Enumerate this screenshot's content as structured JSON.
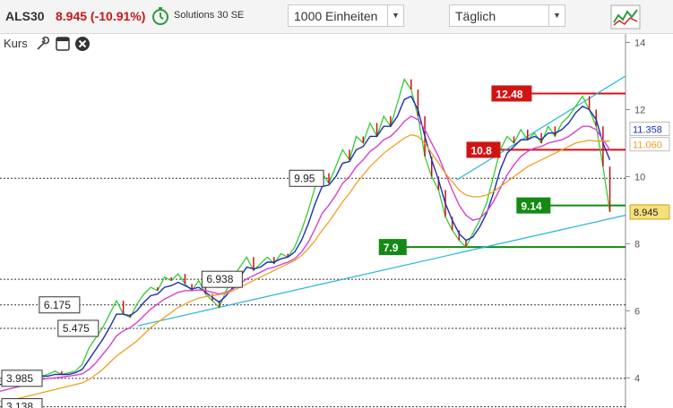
{
  "header": {
    "ticker": "ALS30",
    "price": "8.945 (-10.91%)",
    "trading_label": "Solutions 30 SE",
    "units_select": "1000 Einheiten",
    "interval_select": "Täglich"
  },
  "toolbar": {
    "kurs_label": "Kurs"
  },
  "colors": {
    "price_line": "#33cc33",
    "candle_down": "#cc1111",
    "ma_blue": "#1f2fb0",
    "ma_magenta": "#d93fcf",
    "ma_orange": "#f0a020",
    "trend_cyan": "#23b4e0",
    "level_red": "#d01414",
    "level_green": "#138a13"
  },
  "chart_data": {
    "type": "line",
    "yaxis": {
      "range": [
        3.1,
        14.2
      ],
      "ticks": [
        "14",
        "12",
        "10",
        "8",
        "6",
        "4"
      ]
    },
    "last_price": {
      "value": 8.945,
      "label": "8.945"
    },
    "ma_labels": [
      {
        "label": "11.358",
        "value": 11.36,
        "color": "#1f2fb0"
      },
      {
        "label": "11.060",
        "value": 11.06,
        "color": "#f0a020"
      }
    ],
    "levels": [
      {
        "value": 12.48,
        "label": "12.48",
        "style": "red",
        "line": "solid",
        "x_start": 0.8
      },
      {
        "value": 10.8,
        "label": "10.8",
        "style": "red",
        "line": "solid",
        "x_start": 0.76
      },
      {
        "value": 9.95,
        "label": "9.95",
        "style": "box",
        "line": "dotted",
        "x_start": 0.0
      },
      {
        "value": 9.14,
        "label": "9.14",
        "style": "green",
        "line": "solid",
        "x_start": 0.84
      },
      {
        "value": 7.9,
        "label": "7.9",
        "style": "green",
        "line": "solid",
        "x_start": 0.62
      },
      {
        "value": 6.938,
        "label": "6.938",
        "style": "box",
        "line": "dotted",
        "x_start": 0.0
      },
      {
        "value": 6.175,
        "label": "6.175",
        "style": "box",
        "line": "dotted",
        "x_start": 0.0
      },
      {
        "value": 5.475,
        "label": "5.475",
        "style": "box",
        "line": "dotted",
        "x_start": 0.0
      },
      {
        "value": 3.985,
        "label": "3.985",
        "style": "box",
        "line": "dotted",
        "x_start": 0.0
      },
      {
        "value": 3.138,
        "label": "3.138",
        "style": "box",
        "line": "dotted",
        "x_start": 0.0
      }
    ],
    "trendlines": [
      {
        "from": [
          0.22,
          5.55
        ],
        "to": [
          1.0,
          8.85
        ]
      },
      {
        "from": [
          0.73,
          9.9
        ],
        "to": [
          1.0,
          13.0
        ]
      }
    ],
    "series": [
      {
        "role": "price",
        "values": [
          3.9,
          3.95,
          4.0,
          4.05,
          4.2,
          4.1,
          4.05,
          4.1,
          4.2,
          4.1,
          4.15,
          4.2,
          4.4,
          4.9,
          5.2,
          5.5,
          5.9,
          6.3,
          5.9,
          5.8,
          6.2,
          6.5,
          6.7,
          6.6,
          7.0,
          6.9,
          7.1,
          6.8,
          6.6,
          6.9,
          6.5,
          6.3,
          6.1,
          6.6,
          7.0,
          7.3,
          7.6,
          7.2,
          7.4,
          7.6,
          7.4,
          7.7,
          7.6,
          7.9,
          8.4,
          9.0,
          9.7,
          10.1,
          9.8,
          10.3,
          10.8,
          10.5,
          11.2,
          11.0,
          11.6,
          11.2,
          11.8,
          11.5,
          12.2,
          12.9,
          12.6,
          11.8,
          10.6,
          10.0,
          9.6,
          8.8,
          8.4,
          8.1,
          7.9,
          8.3,
          8.7,
          9.2,
          10.0,
          10.8,
          11.2,
          11.0,
          11.4,
          11.1,
          11.3,
          11.0,
          11.5,
          11.2,
          11.6,
          11.8,
          12.1,
          12.4,
          12.0,
          11.5,
          10.3,
          8.945
        ]
      },
      {
        "role": "ma_short",
        "values": [
          3.8,
          3.85,
          3.9,
          3.95,
          4.05,
          4.05,
          4.05,
          4.05,
          4.1,
          4.1,
          4.1,
          4.15,
          4.25,
          4.55,
          4.85,
          5.15,
          5.5,
          5.9,
          5.9,
          5.85,
          6.0,
          6.25,
          6.45,
          6.5,
          6.7,
          6.75,
          6.85,
          6.75,
          6.65,
          6.7,
          6.55,
          6.4,
          6.25,
          6.45,
          6.7,
          7.0,
          7.3,
          7.25,
          7.3,
          7.45,
          7.45,
          7.55,
          7.6,
          7.75,
          8.1,
          8.6,
          9.2,
          9.7,
          9.75,
          10.0,
          10.4,
          10.45,
          10.8,
          10.9,
          11.2,
          11.2,
          11.5,
          11.5,
          11.8,
          12.3,
          12.4,
          12.0,
          11.2,
          10.5,
          9.9,
          9.2,
          8.7,
          8.3,
          8.1,
          8.2,
          8.5,
          8.9,
          9.5,
          10.2,
          10.7,
          10.9,
          11.1,
          11.1,
          11.2,
          11.1,
          11.3,
          11.3,
          11.4,
          11.6,
          11.9,
          12.1,
          12.0,
          11.7,
          11.0,
          10.5
        ]
      },
      {
        "role": "ma_mid",
        "values": [
          3.6,
          3.65,
          3.7,
          3.75,
          3.85,
          3.9,
          3.95,
          3.98,
          4.0,
          4.02,
          4.05,
          4.08,
          4.12,
          4.25,
          4.45,
          4.7,
          4.95,
          5.25,
          5.4,
          5.5,
          5.65,
          5.85,
          6.05,
          6.2,
          6.35,
          6.45,
          6.55,
          6.6,
          6.6,
          6.62,
          6.6,
          6.55,
          6.5,
          6.55,
          6.65,
          6.8,
          6.95,
          7.05,
          7.15,
          7.25,
          7.3,
          7.38,
          7.45,
          7.55,
          7.75,
          8.05,
          8.45,
          8.9,
          9.15,
          9.45,
          9.8,
          10.0,
          10.3,
          10.5,
          10.75,
          10.9,
          11.1,
          11.2,
          11.4,
          11.65,
          11.8,
          11.7,
          11.4,
          11.0,
          10.6,
          10.1,
          9.6,
          9.15,
          8.85,
          8.7,
          8.75,
          8.95,
          9.25,
          9.65,
          10.05,
          10.35,
          10.6,
          10.75,
          10.85,
          10.9,
          11.0,
          11.05,
          11.1,
          11.2,
          11.35,
          11.5,
          11.5,
          11.4,
          11.1,
          10.8
        ]
      },
      {
        "role": "ma_long",
        "values": [
          3.3,
          3.33,
          3.36,
          3.4,
          3.45,
          3.5,
          3.55,
          3.6,
          3.65,
          3.7,
          3.75,
          3.8,
          3.85,
          3.95,
          4.1,
          4.25,
          4.45,
          4.65,
          4.8,
          4.95,
          5.1,
          5.3,
          5.5,
          5.65,
          5.8,
          5.95,
          6.1,
          6.2,
          6.3,
          6.38,
          6.42,
          6.45,
          6.48,
          6.52,
          6.6,
          6.7,
          6.8,
          6.9,
          7.0,
          7.1,
          7.2,
          7.3,
          7.4,
          7.5,
          7.65,
          7.85,
          8.1,
          8.4,
          8.65,
          8.95,
          9.25,
          9.5,
          9.8,
          10.05,
          10.3,
          10.5,
          10.7,
          10.85,
          11.0,
          11.15,
          11.25,
          11.2,
          11.0,
          10.7,
          10.4,
          10.1,
          9.85,
          9.6,
          9.45,
          9.4,
          9.4,
          9.45,
          9.55,
          9.7,
          9.85,
          10.0,
          10.15,
          10.3,
          10.4,
          10.5,
          10.6,
          10.7,
          10.8,
          10.9,
          11.0,
          11.05,
          11.08,
          11.06,
          11.06,
          11.06
        ]
      }
    ]
  }
}
